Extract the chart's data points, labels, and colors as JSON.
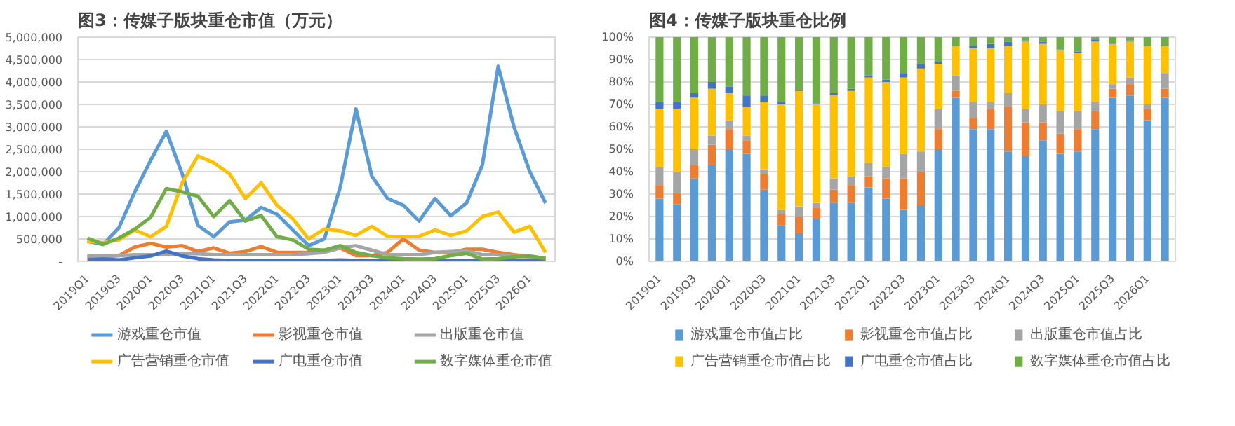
{
  "chart_data": [
    {
      "type": "line",
      "title": "图3：传媒子版块重仓市值（万元）",
      "grid": "y",
      "legend": "bottom",
      "categories": [
        "2019Q1",
        null,
        "2019Q3",
        null,
        "2020Q1",
        null,
        "2020Q3",
        null,
        "2021Q1",
        null,
        "2021Q3",
        null,
        "2022Q1",
        null,
        "2022Q3",
        null,
        "2023Q1",
        null,
        "2023Q3",
        null,
        "2024Q1",
        null,
        "2024Q3",
        null,
        "2025Q1",
        null,
        "2025Q3",
        null,
        "2026Q1",
        null
      ],
      "ylim": [
        0,
        5000000
      ],
      "yticks": [
        {
          "value": 0,
          "label": "-"
        },
        {
          "value": 500000,
          "label": "500,000"
        },
        {
          "value": 1000000,
          "label": "1,000,000"
        },
        {
          "value": 1500000,
          "label": "1,500,000"
        },
        {
          "value": 2000000,
          "label": "2,000,000"
        },
        {
          "value": 2500000,
          "label": "2,500,000"
        },
        {
          "value": 3000000,
          "label": "3,000,000"
        },
        {
          "value": 3500000,
          "label": "3,500,000"
        },
        {
          "value": 4000000,
          "label": "4,000,000"
        },
        {
          "value": 4500000,
          "label": "4,500,000"
        },
        {
          "value": 5000000,
          "label": "5,000,000"
        }
      ],
      "series": [
        {
          "name": "游戏重仓市值",
          "color": "#5b9bd5",
          "values": [
            450000,
            380000,
            750000,
            1550000,
            2250000,
            2900000,
            1950000,
            800000,
            550000,
            880000,
            920000,
            1200000,
            1050000,
            700000,
            350000,
            500000,
            1650000,
            3400000,
            1900000,
            1400000,
            1250000,
            900000,
            1400000,
            1020000,
            1300000,
            2150000,
            4350000,
            3000000,
            2000000,
            1300000
          ]
        },
        {
          "name": "影视重仓市值",
          "color": "#ed7d31",
          "values": [
            100000,
            100000,
            130000,
            320000,
            400000,
            320000,
            350000,
            220000,
            300000,
            180000,
            220000,
            330000,
            200000,
            200000,
            200000,
            230000,
            300000,
            130000,
            130000,
            200000,
            500000,
            250000,
            200000,
            200000,
            270000,
            270000,
            200000,
            150000,
            100000,
            80000
          ]
        },
        {
          "name": "出版重仓市值",
          "color": "#a5a5a5",
          "values": [
            130000,
            130000,
            130000,
            150000,
            150000,
            150000,
            170000,
            170000,
            150000,
            150000,
            150000,
            150000,
            150000,
            150000,
            170000,
            200000,
            300000,
            350000,
            250000,
            150000,
            150000,
            150000,
            200000,
            220000,
            230000,
            150000,
            150000,
            120000,
            100000,
            80000
          ]
        },
        {
          "name": "广告营销重仓市值",
          "color": "#ffc000",
          "values": [
            450000,
            420000,
            480000,
            700000,
            550000,
            780000,
            1750000,
            2350000,
            2200000,
            1950000,
            1400000,
            1750000,
            1250000,
            950000,
            500000,
            720000,
            680000,
            580000,
            780000,
            560000,
            550000,
            560000,
            700000,
            580000,
            680000,
            1000000,
            1100000,
            650000,
            780000,
            200000
          ]
        },
        {
          "name": "广电重仓市值",
          "color": "#4472c4",
          "values": [
            30000,
            50000,
            30000,
            80000,
            120000,
            230000,
            120000,
            60000,
            30000,
            20000,
            20000,
            20000,
            20000,
            20000,
            20000,
            20000,
            30000,
            20000,
            20000,
            20000,
            20000,
            20000,
            20000,
            20000,
            20000,
            20000,
            20000,
            20000,
            20000,
            20000
          ]
        },
        {
          "name": "数字媒体重仓市值",
          "color": "#70ad47",
          "values": [
            520000,
            380000,
            520000,
            720000,
            980000,
            1620000,
            1550000,
            1450000,
            1000000,
            1350000,
            900000,
            1020000,
            550000,
            480000,
            270000,
            250000,
            350000,
            200000,
            130000,
            80000,
            60000,
            50000,
            60000,
            130000,
            180000,
            50000,
            60000,
            100000,
            120000,
            60000
          ]
        }
      ]
    },
    {
      "type": "bar",
      "stacked": true,
      "title": "图4：传媒子版块重仓比例",
      "grid": "y",
      "legend": "bottom",
      "categories": [
        "2019Q1",
        null,
        "2019Q3",
        null,
        "2020Q1",
        null,
        "2020Q3",
        null,
        "2021Q1",
        null,
        "2021Q3",
        null,
        "2022Q1",
        null,
        "2022Q3",
        null,
        "2023Q1",
        null,
        "2023Q3",
        null,
        "2024Q1",
        null,
        "2024Q3",
        null,
        "2025Q1",
        null,
        "2025Q3",
        null,
        "2026Q1",
        null
      ],
      "ylim": [
        0,
        100
      ],
      "yticks": [
        {
          "value": 0,
          "label": "0%"
        },
        {
          "value": 10,
          "label": "10%"
        },
        {
          "value": 20,
          "label": "20%"
        },
        {
          "value": 30,
          "label": "30%"
        },
        {
          "value": 40,
          "label": "40%"
        },
        {
          "value": 50,
          "label": "50%"
        },
        {
          "value": 60,
          "label": "60%"
        },
        {
          "value": 70,
          "label": "70%"
        },
        {
          "value": 80,
          "label": "80%"
        },
        {
          "value": 90,
          "label": "90%"
        },
        {
          "value": 100,
          "label": "100%"
        }
      ],
      "series": [
        {
          "name": "游戏重仓市值占比",
          "color": "#5b9bd5",
          "values": [
            28,
            25.5,
            37,
            43,
            50,
            48,
            32,
            16,
            12.5,
            19,
            26,
            26,
            33,
            28,
            23,
            25,
            50,
            73,
            59,
            59,
            49,
            47,
            54,
            48,
            49,
            59,
            73,
            74,
            63,
            73
          ]
        },
        {
          "name": "影视重仓市值占比",
          "color": "#ed7d31",
          "values": [
            6,
            5,
            6,
            9,
            9,
            6,
            7,
            5,
            7.5,
            5,
            6,
            8,
            5,
            9,
            14,
            15,
            9,
            3,
            5,
            9,
            20,
            15,
            8,
            9,
            10,
            8,
            4,
            5,
            5,
            4
          ]
        },
        {
          "name": "出版重仓市值占比",
          "color": "#a5a5a5",
          "values": [
            8,
            9.5,
            7,
            4,
            4,
            2,
            2,
            2,
            4.5,
            2,
            5,
            4,
            6,
            5,
            11,
            9,
            9,
            7,
            7,
            3,
            6,
            6,
            8,
            10,
            8,
            4,
            2,
            3,
            2,
            7
          ]
        },
        {
          "name": "广告营销重仓市值占比",
          "color": "#ffc000",
          "values": [
            26,
            28,
            23,
            21,
            12,
            13,
            30,
            47,
            51.5,
            44,
            37,
            38,
            38,
            38,
            34,
            37,
            20,
            13,
            24,
            24,
            21,
            30,
            27,
            27,
            26,
            27,
            18,
            16,
            26,
            12
          ]
        },
        {
          "name": "广电重仓市值占比",
          "color": "#4472c4",
          "values": [
            3,
            3,
            2,
            3,
            3,
            5,
            3,
            1,
            0.5,
            0.5,
            1,
            1,
            1,
            1,
            2,
            2,
            1,
            0.5,
            1,
            2,
            2,
            0.5,
            1,
            0.5,
            0.5,
            1,
            0.5,
            0.5,
            0.5,
            0.5
          ]
        },
        {
          "name": "数字媒体重仓市值占比",
          "color": "#70ad47",
          "values": [
            29,
            29,
            25,
            20,
            22,
            26,
            26,
            29,
            23.5,
            29.5,
            25,
            23,
            17,
            19,
            16,
            12,
            11,
            3.5,
            4,
            3,
            2,
            1.5,
            2,
            5.5,
            6.5,
            1,
            2.5,
            1.5,
            3.5,
            3.5
          ]
        }
      ]
    }
  ]
}
